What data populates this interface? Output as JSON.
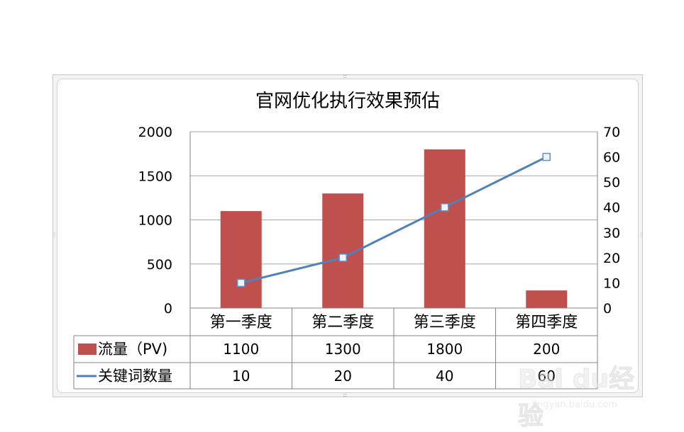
{
  "chart_data": {
    "type": "bar+line",
    "title": "官网优化执行效果预估",
    "categories": [
      "第一季度",
      "第二季度",
      "第三季度",
      "第四季度"
    ],
    "series": [
      {
        "name": "流量（PV)",
        "type": "bar",
        "axis": "left",
        "color": "#c0504d",
        "values": [
          1100,
          1300,
          1800,
          200
        ]
      },
      {
        "name": "关键词数量",
        "type": "line",
        "axis": "right",
        "color": "#4f81bd",
        "values": [
          10,
          20,
          40,
          60
        ]
      }
    ],
    "y_left": {
      "min": 0,
      "max": 2000,
      "ticks": [
        "0",
        "500",
        "1000",
        "1500",
        "2000"
      ]
    },
    "y_right": {
      "min": 0,
      "max": 70,
      "ticks": [
        "0",
        "10",
        "20",
        "30",
        "40",
        "50",
        "60",
        "70"
      ]
    },
    "grid": true,
    "data_table": {
      "rows": [
        {
          "label": "流量（PV)",
          "values": [
            "1100",
            "1300",
            "1800",
            "200"
          ]
        },
        {
          "label": "关键词数量",
          "values": [
            "10",
            "20",
            "40",
            "60"
          ]
        }
      ]
    }
  },
  "watermark": {
    "brand": "Bai du经验",
    "sub": "jingyan.baidu.com"
  }
}
